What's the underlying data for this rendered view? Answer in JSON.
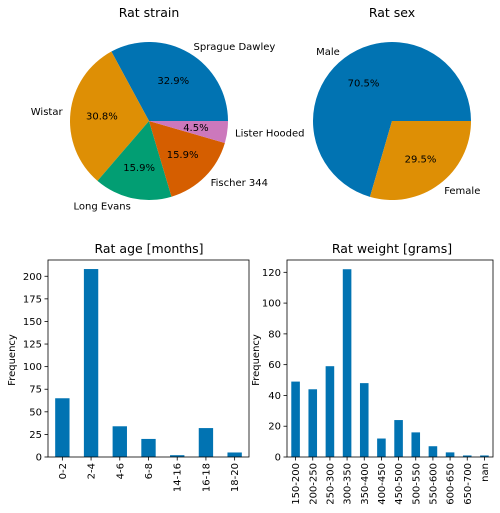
{
  "chart_data": [
    {
      "type": "pie",
      "title": "Rat strain",
      "slices": [
        {
          "label": "Sprague Dawley",
          "value": 32.9,
          "pct_label": "32.9%",
          "color": "#0173b2"
        },
        {
          "label": "Wistar",
          "value": 30.8,
          "pct_label": "30.8%",
          "color": "#de8f05"
        },
        {
          "label": "Long Evans",
          "value": 15.9,
          "pct_label": "15.9%",
          "color": "#029e73"
        },
        {
          "label": "Fischer 344",
          "value": 15.9,
          "pct_label": "15.9%",
          "color": "#d55e00"
        },
        {
          "label": "Lister Hooded",
          "value": 4.5,
          "pct_label": "4.5%",
          "color": "#cc78bc"
        }
      ]
    },
    {
      "type": "pie",
      "title": "Rat sex",
      "slices": [
        {
          "label": "Male",
          "value": 70.5,
          "pct_label": "70.5%",
          "color": "#0173b2"
        },
        {
          "label": "Female",
          "value": 29.5,
          "pct_label": "29.5%",
          "color": "#de8f05"
        }
      ]
    },
    {
      "type": "bar",
      "title": "Rat age [months]",
      "xlabel": "",
      "ylabel": "Frequency",
      "categories": [
        "0-2",
        "2-4",
        "4-6",
        "6-8",
        "14-16",
        "16-18",
        "18-20"
      ],
      "values": [
        65,
        208,
        34,
        20,
        2,
        32,
        5
      ],
      "ylim": [
        0,
        218
      ],
      "yticks": [
        0,
        25,
        50,
        75,
        100,
        125,
        150,
        175,
        200
      ],
      "color": "#0173b2",
      "grid": false
    },
    {
      "type": "bar",
      "title": "Rat weight [grams]",
      "xlabel": "",
      "ylabel": "Frequency",
      "categories": [
        "150-200",
        "200-250",
        "250-300",
        "300-350",
        "350-400",
        "400-450",
        "450-500",
        "500-550",
        "550-600",
        "600-650",
        "650-700",
        "nan"
      ],
      "values": [
        49,
        44,
        59,
        122,
        48,
        12,
        24,
        16,
        7,
        3,
        1,
        1
      ],
      "ylim": [
        0,
        128
      ],
      "yticks": [
        0,
        20,
        40,
        60,
        80,
        100,
        120
      ],
      "color": "#0173b2",
      "grid": false
    }
  ]
}
